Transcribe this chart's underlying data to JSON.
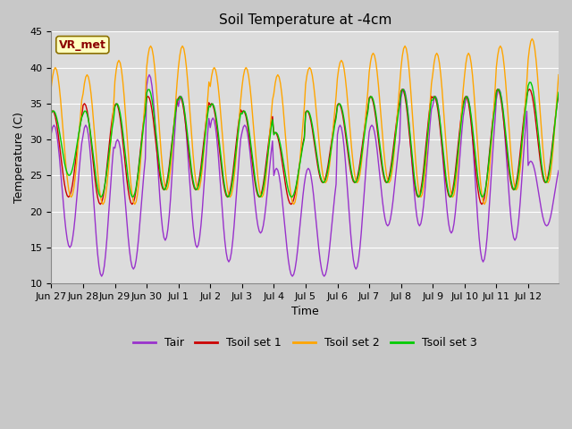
{
  "title": "Soil Temperature at -4cm",
  "xlabel": "Time",
  "ylabel": "Temperature (C)",
  "ylim": [
    10,
    45
  ],
  "annotation_text": "VR_met",
  "annotation_color": "#8B0000",
  "annotation_bg": "#FFFFC0",
  "colors": {
    "Tair": "#9932CC",
    "Tsoil_set1": "#CC0000",
    "Tsoil_set2": "#FFA500",
    "Tsoil_set3": "#00CC00"
  },
  "legend_labels": [
    "Tair",
    "Tsoil set 1",
    "Tsoil set 2",
    "Tsoil set 3"
  ],
  "fig_bg_color": "#C8C8C8",
  "plot_bg": "#DCDCDC",
  "grid_color": "#FFFFFF",
  "xtick_labels": [
    "Jun 27",
    "Jun 28",
    "Jun 29",
    "Jun 30",
    "Jul 1",
    "Jul 2",
    "Jul 3",
    "Jul 4",
    "Jul 5",
    "Jul 6",
    "Jul 7",
    "Jul 8",
    "Jul 9",
    "Jul 10",
    "Jul 11",
    "Jul 12"
  ],
  "n_days": 16,
  "tair_min": [
    15,
    11,
    12,
    16,
    15,
    13,
    17,
    11,
    11,
    12,
    18,
    18,
    17,
    13,
    16,
    18
  ],
  "tair_max": [
    32,
    32,
    30,
    39,
    36,
    33,
    32,
    26,
    26,
    32,
    32,
    37,
    36,
    36,
    37,
    27
  ],
  "tsoil1_min": [
    22,
    21,
    21,
    23,
    23,
    22,
    22,
    21,
    24,
    24,
    24,
    22,
    22,
    21,
    23,
    24
  ],
  "tsoil1_max": [
    34,
    35,
    35,
    36,
    36,
    35,
    34,
    31,
    34,
    35,
    36,
    37,
    36,
    36,
    37,
    37
  ],
  "tsoil2_min": [
    22,
    21,
    21,
    23,
    23,
    22,
    22,
    21,
    24,
    24,
    24,
    22,
    22,
    21,
    23,
    24
  ],
  "tsoil2_max": [
    40,
    39,
    41,
    43,
    43,
    40,
    40,
    39,
    40,
    41,
    42,
    43,
    42,
    42,
    43,
    44
  ],
  "tsoil3_min": [
    25,
    22,
    22,
    23,
    23,
    22,
    22,
    22,
    24,
    24,
    24,
    22,
    22,
    22,
    23,
    24
  ],
  "tsoil3_max": [
    34,
    34,
    35,
    37,
    36,
    35,
    34,
    31,
    34,
    35,
    36,
    37,
    36,
    36,
    37,
    38
  ],
  "tair_phase": 0,
  "tsoil1_phase": 1,
  "tsoil2_phase": -1,
  "tsoil3_phase": 0.5
}
